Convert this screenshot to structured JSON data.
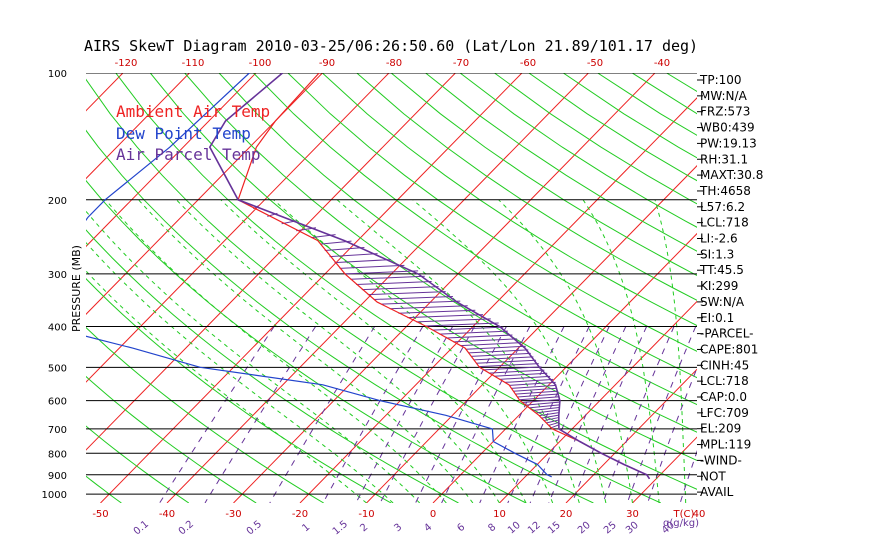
{
  "chart_data": {
    "type": "skewt",
    "title": "AIRS SkewT Diagram 2010-03-25/06:26:50.60 (Lat/Lon 21.89/101.17 deg)",
    "ylabel": "PRESSURE (MB)",
    "xlabel_right": "T(C)",
    "mixing_ratio_unit": "q(g/kg)",
    "pressure_ticks": [
      100,
      200,
      300,
      400,
      500,
      600,
      700,
      800,
      900,
      1000
    ],
    "bottom_temp_ticks": [
      "-50",
      "-40",
      "-30",
      "-20",
      "-10",
      "0",
      "10",
      "20",
      "30",
      "40"
    ],
    "top_temp_ticks": [
      "-120",
      "-110",
      "-100",
      "-90",
      "-80",
      "-70",
      "-60",
      "-50",
      "-40"
    ],
    "mixing_ratio_labels": [
      "0.1",
      "0.2",
      "0.5",
      "1",
      "1.5",
      "2",
      "3",
      "4",
      "6",
      "8",
      "10",
      "12",
      "15",
      "20",
      "25",
      "30",
      "40"
    ],
    "legend": [
      {
        "label": "Ambient Air Temp",
        "color": "#ee2222"
      },
      {
        "label": "Dew Point Temp",
        "color": "#2244cc"
      },
      {
        "label": "Air Parcel Temp",
        "color": "#663399"
      }
    ],
    "series": [
      {
        "name": "Ambient Air Temp",
        "color": "#ee2222",
        "points": [
          [
            100,
            -80.5
          ],
          [
            130,
            -80
          ],
          [
            150,
            -79
          ],
          [
            200,
            -74
          ],
          [
            250,
            -56
          ],
          [
            300,
            -47
          ],
          [
            350,
            -38
          ],
          [
            400,
            -27
          ],
          [
            450,
            -18
          ],
          [
            500,
            -13
          ],
          [
            550,
            -6
          ],
          [
            600,
            -2
          ],
          [
            650,
            3
          ],
          [
            700,
            7
          ],
          [
            750,
            13
          ],
          [
            800,
            18
          ],
          [
            850,
            23
          ],
          [
            900,
            28
          ],
          [
            920,
            29
          ]
        ]
      },
      {
        "name": "Dew Point Temp",
        "color": "#2244cc",
        "points": [
          [
            100,
            -91
          ],
          [
            150,
            -92
          ],
          [
            200,
            -94
          ],
          [
            220,
            -94
          ],
          [
            250,
            -93
          ],
          [
            300,
            -94
          ],
          [
            350,
            -92
          ],
          [
            400,
            -84
          ],
          [
            450,
            -68
          ],
          [
            500,
            -55
          ],
          [
            550,
            -34
          ],
          [
            600,
            -23
          ],
          [
            650,
            -11
          ],
          [
            700,
            -2
          ],
          [
            750,
            0
          ],
          [
            800,
            5
          ],
          [
            850,
            10
          ],
          [
            900,
            13
          ],
          [
            910,
            14
          ]
        ]
      },
      {
        "name": "Air Parcel Temp",
        "color": "#663399",
        "points": [
          [
            100,
            -86
          ],
          [
            130,
            -87.5
          ],
          [
            150,
            -86
          ],
          [
            200,
            -74
          ],
          [
            250,
            -52
          ],
          [
            300,
            -36
          ],
          [
            350,
            -26
          ],
          [
            400,
            -16
          ],
          [
            450,
            -9
          ],
          [
            500,
            -4
          ],
          [
            550,
            1
          ],
          [
            600,
            4
          ],
          [
            650,
            6
          ],
          [
            700,
            8
          ],
          [
            750,
            13
          ],
          [
            800,
            18
          ],
          [
            850,
            23
          ],
          [
            900,
            28
          ],
          [
            920,
            29
          ]
        ]
      }
    ]
  },
  "stats": [
    "TP:100",
    "MW:N/A",
    "FRZ:573",
    "WB0:439",
    "PW:19.13",
    "RH:31.1",
    "MAXT:30.8",
    "TH:4658",
    "L57:6.2",
    "LCL:718",
    "LI:-2.6",
    "SI:1.3",
    "TT:45.5",
    "KI:299",
    "SW:N/A",
    "EI:0.1",
    "-PARCEL-",
    "CAPE:801",
    "CINH:45",
    "LCL:718",
    "CAP:0.0",
    "LFC:709",
    "EL:209",
    "MPL:119",
    "-WIND-",
    "NOT",
    "AVAIL"
  ],
  "colors": {
    "isotherm": "#ee2222",
    "dry_adiabat": "#22cc22",
    "moist_adiabat": "#22cc22",
    "mixing_ratio": "#663399",
    "axis_red": "#cc0000",
    "axis_purple": "#663399"
  }
}
